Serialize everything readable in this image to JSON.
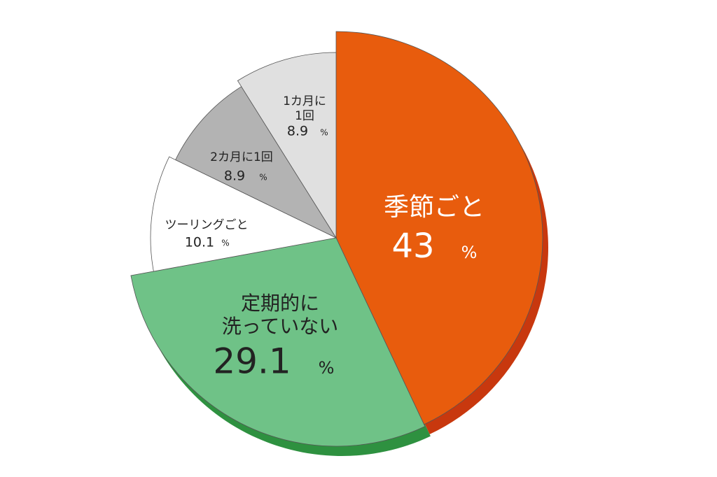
{
  "chart_data": {
    "type": "pie",
    "categories": [
      [
        "季節ごと"
      ],
      [
        "定期的に",
        "洗っていない"
      ],
      [
        "ツーリングごと"
      ],
      [
        "2カ月に1回"
      ],
      [
        "1カ月に",
        "1回"
      ]
    ],
    "values": [
      43,
      29.1,
      10.1,
      8.9,
      8.9
    ],
    "unit": "%",
    "colors": [
      "#e85c0d",
      "#6fc287",
      "#ffffff",
      "#b3b3b3",
      "#e0e0e0"
    ]
  }
}
